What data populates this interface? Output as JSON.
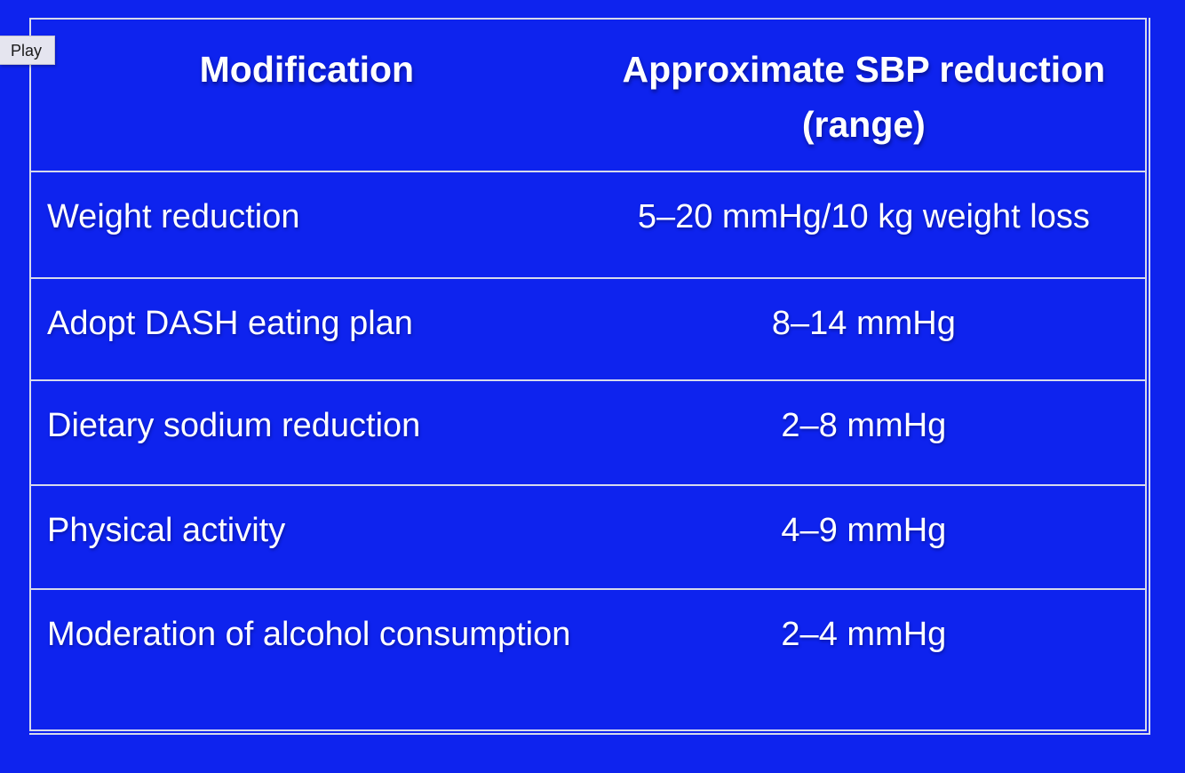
{
  "player": {
    "play_label": "Play"
  },
  "slide": {
    "table": {
      "header": {
        "modification": "Modification",
        "sbp_reduction": "Approximate SBP reduction (range)"
      },
      "rows": [
        {
          "modification": "Weight reduction",
          "reduction": "5–20 mmHg/10 kg weight loss"
        },
        {
          "modification": "Adopt DASH eating plan",
          "reduction": "8–14 mmHg"
        },
        {
          "modification": "Dietary sodium reduction",
          "reduction": "2–8 mmHg"
        },
        {
          "modification": "Physical activity",
          "reduction": "4–9 mmHg"
        },
        {
          "modification": "Moderation of alcohol consumption",
          "reduction": "2–4 mmHg"
        }
      ]
    },
    "colors": {
      "background": "#0e23ee",
      "grid_line": "#d6d9ec",
      "text": "#ffffff",
      "tooltip_background": "#e5e5ef",
      "tooltip_text": "#1a1a1a"
    }
  }
}
